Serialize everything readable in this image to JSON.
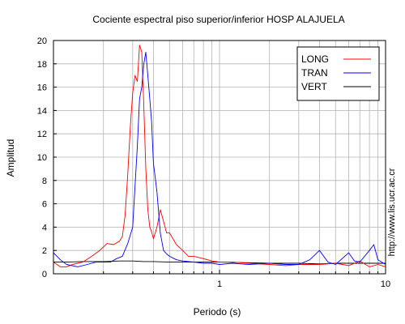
{
  "chart_data": {
    "type": "line",
    "title": "Cociente espectral piso superior/inferior  HOSP ALAJUELA",
    "xlabel": "Periodo (s)",
    "ylabel": "Amplitud",
    "x_scale": "log",
    "xlim": [
      0.1,
      10
    ],
    "ylim": [
      0,
      20
    ],
    "x_tick_labels": [
      {
        "v": 1,
        "label": "1"
      },
      {
        "v": 10,
        "label": "10"
      }
    ],
    "y_ticks": [
      0,
      2,
      4,
      6,
      8,
      10,
      12,
      14,
      16,
      18,
      20
    ],
    "grid": true,
    "legend_position": "top-right",
    "side_text": "http://www.lis.ucr.ac.cr",
    "series": [
      {
        "name": "LONG",
        "color": "#ff0000",
        "x": [
          0.1,
          0.11,
          0.12,
          0.13,
          0.15,
          0.17,
          0.19,
          0.21,
          0.23,
          0.25,
          0.26,
          0.27,
          0.28,
          0.29,
          0.3,
          0.31,
          0.32,
          0.33,
          0.34,
          0.35,
          0.36,
          0.37,
          0.38,
          0.39,
          0.4,
          0.42,
          0.44,
          0.46,
          0.48,
          0.5,
          0.55,
          0.6,
          0.65,
          0.7,
          0.8,
          0.9,
          1.0,
          1.2,
          1.5,
          2.0,
          2.5,
          3.0,
          4.0,
          5.0,
          6.0,
          7.0,
          8.0,
          9.0,
          10.0
        ],
        "y": [
          1.0,
          0.6,
          0.6,
          0.8,
          1.0,
          1.5,
          2.0,
          2.6,
          2.5,
          2.8,
          3.2,
          5.0,
          8.5,
          12.5,
          15.5,
          17.0,
          16.5,
          19.6,
          19.0,
          14.5,
          9.0,
          5.5,
          4.0,
          3.6,
          3.0,
          4.0,
          5.5,
          4.5,
          3.5,
          3.5,
          2.5,
          2.0,
          1.5,
          1.5,
          1.3,
          1.1,
          1.0,
          1.0,
          0.9,
          0.8,
          0.7,
          0.8,
          0.8,
          0.9,
          0.7,
          1.1,
          0.6,
          0.8,
          0.6
        ]
      },
      {
        "name": "TRAN",
        "color": "#0000ff",
        "x": [
          0.1,
          0.11,
          0.12,
          0.14,
          0.16,
          0.18,
          0.2,
          0.22,
          0.24,
          0.26,
          0.28,
          0.3,
          0.31,
          0.32,
          0.33,
          0.34,
          0.35,
          0.36,
          0.37,
          0.38,
          0.39,
          0.4,
          0.42,
          0.44,
          0.46,
          0.48,
          0.5,
          0.55,
          0.6,
          0.7,
          0.8,
          0.9,
          1.0,
          1.2,
          1.5,
          2.0,
          2.5,
          3.0,
          3.5,
          4.0,
          4.5,
          5.0,
          6.0,
          6.5,
          7.0,
          8.0,
          8.5,
          9.0,
          10.0
        ],
        "y": [
          1.8,
          1.2,
          0.8,
          0.6,
          0.8,
          1.0,
          1.0,
          1.0,
          1.3,
          1.5,
          2.6,
          4.0,
          7.5,
          11.0,
          15.0,
          16.0,
          18.0,
          19.0,
          17.0,
          15.0,
          13.0,
          9.5,
          7.0,
          3.5,
          2.0,
          1.7,
          1.5,
          1.2,
          1.1,
          1.0,
          0.9,
          0.9,
          0.8,
          0.9,
          0.8,
          0.9,
          0.8,
          0.8,
          1.2,
          2.0,
          1.0,
          0.8,
          1.8,
          1.1,
          1.0,
          2.0,
          2.5,
          1.2,
          0.8
        ]
      },
      {
        "name": "VERT",
        "color": "#000000",
        "x": [
          0.1,
          0.12,
          0.15,
          0.2,
          0.25,
          0.3,
          0.35,
          0.4,
          0.5,
          0.6,
          0.8,
          1.0,
          1.5,
          2.0,
          3.0,
          4.0,
          5.0,
          6.0,
          7.0,
          8.0,
          9.0,
          10.0
        ],
        "y": [
          1.0,
          1.0,
          1.05,
          1.05,
          1.1,
          1.1,
          1.05,
          1.05,
          1.0,
          1.0,
          1.0,
          1.0,
          0.95,
          0.9,
          0.9,
          0.85,
          0.9,
          0.9,
          0.9,
          0.9,
          0.9,
          0.9
        ]
      }
    ]
  }
}
